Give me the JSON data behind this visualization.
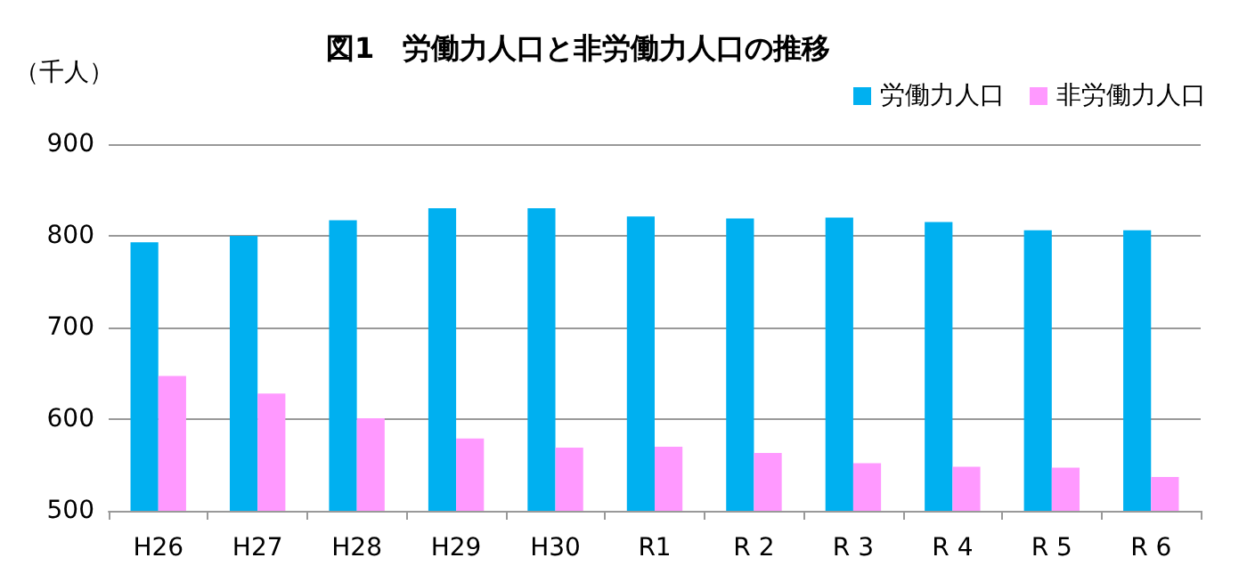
{
  "chart_data": {
    "type": "bar",
    "title": "図1　労働力人口と非労働力人口の推移",
    "ylabel": "（千人）",
    "categories": [
      "H26",
      "H27",
      "H28",
      "H29",
      "H30",
      "R1",
      "R 2",
      "R 3",
      "R 4",
      "R 5",
      "R 6"
    ],
    "series": [
      {
        "name": "労働力人口",
        "color": "#00b0f0",
        "values": [
          793,
          800,
          817,
          830,
          830,
          821,
          819,
          820,
          815,
          806,
          806
        ]
      },
      {
        "name": "非労働力人口",
        "color": "#ff99ff",
        "values": [
          647,
          628,
          601,
          579,
          569,
          570,
          563,
          552,
          548,
          547,
          537
        ]
      }
    ],
    "ylim": [
      500,
      900
    ],
    "yticks": [
      500,
      600,
      700,
      800,
      900
    ],
    "grid": "y",
    "legend": "top right"
  }
}
